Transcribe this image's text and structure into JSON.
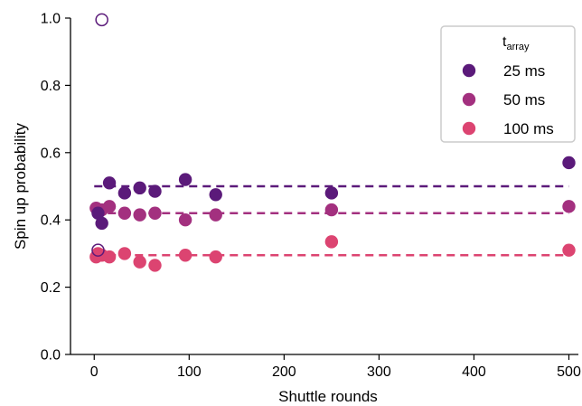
{
  "chart_data": {
    "type": "scatter",
    "title": "",
    "xlabel": "Shuttle rounds",
    "ylabel": "Spin up probability",
    "xlim": [
      -25,
      510
    ],
    "ylim": [
      0.0,
      1.0
    ],
    "xticks": [
      0,
      100,
      200,
      300,
      400,
      500
    ],
    "yticks": [
      0.0,
      0.2,
      0.4,
      0.6,
      0.8,
      1.0
    ],
    "xtick_labels": [
      "0",
      "100",
      "200",
      "300",
      "400",
      "500"
    ],
    "ytick_labels": [
      "0.0",
      "0.2",
      "0.4",
      "0.6",
      "0.8",
      "1.0"
    ],
    "grid": false,
    "legend": {
      "placement": "top-right",
      "title_main": "t",
      "title_sub": "array"
    },
    "series": [
      {
        "name": "25 ms",
        "color": "#5b1a7a",
        "x": [
          4,
          8,
          16,
          32,
          48,
          64,
          96,
          128,
          250,
          500
        ],
        "y": [
          0.42,
          0.39,
          0.51,
          0.48,
          0.495,
          0.485,
          0.52,
          0.475,
          0.48,
          0.57
        ],
        "fit_y": 0.5,
        "open_markers": [
          {
            "x": 4,
            "y": 0.31
          },
          {
            "x": 8,
            "y": 0.995
          }
        ]
      },
      {
        "name": "50 ms",
        "color": "#a3307f",
        "x": [
          2,
          8,
          16,
          32,
          48,
          64,
          96,
          128,
          250,
          500
        ],
        "y": [
          0.435,
          0.43,
          0.44,
          0.42,
          0.415,
          0.42,
          0.4,
          0.415,
          0.43,
          0.44
        ],
        "fit_y": 0.42
      },
      {
        "name": "100 ms",
        "color": "#dc4471",
        "x": [
          2,
          4,
          8,
          16,
          32,
          48,
          64,
          96,
          128,
          250,
          500
        ],
        "y": [
          0.29,
          0.3,
          0.295,
          0.29,
          0.3,
          0.275,
          0.265,
          0.295,
          0.29,
          0.335,
          0.31
        ],
        "fit_y": 0.295
      }
    ]
  }
}
